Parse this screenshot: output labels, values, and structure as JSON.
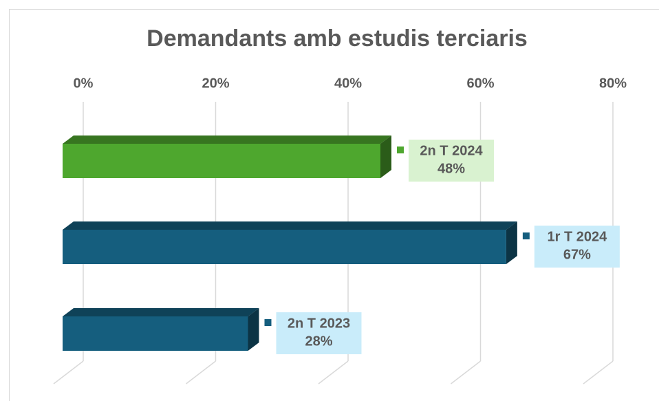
{
  "chart_data": {
    "type": "bar3d_horizontal",
    "title": "Demandants amb estudis terciaris",
    "categories": [
      "2n T 2024",
      "1r T 2024",
      "2n T 2023"
    ],
    "values": [
      48,
      67,
      28
    ],
    "value_labels": [
      "48%",
      "67%",
      "28%"
    ],
    "colors": [
      "#4ea72e",
      "#155e7e",
      "#155e7e"
    ],
    "label_colors": [
      "#d9f2d0",
      "#c9ecfa",
      "#c9ecfa"
    ],
    "xlim": [
      0,
      80
    ],
    "xticks": [
      {
        "value": 0,
        "label": "0%"
      },
      {
        "value": 20,
        "label": "20%"
      },
      {
        "value": 40,
        "label": "40%"
      },
      {
        "value": 60,
        "label": "60%"
      },
      {
        "value": 80,
        "label": "80%"
      }
    ],
    "grid": true
  }
}
